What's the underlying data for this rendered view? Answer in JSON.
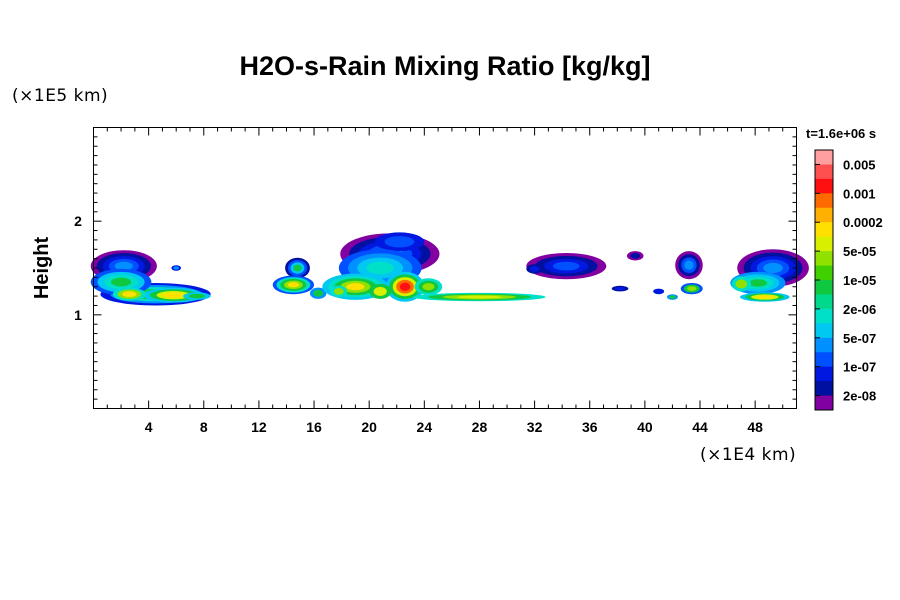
{
  "chart_data": {
    "type": "heatmap",
    "title": "H2O-s-Rain Mixing Ratio [kg/kg]",
    "ylabel": "Height",
    "xlabel": "",
    "x_unit": "(×1E4 km)",
    "y_unit": "(×1E5 km)",
    "time_label": "t=1.6e+06 s",
    "xlim": [
      0,
      51
    ],
    "ylim": [
      0,
      3
    ],
    "x_ticks": [
      4,
      8,
      12,
      16,
      20,
      24,
      28,
      32,
      36,
      40,
      44,
      48
    ],
    "y_ticks": [
      1,
      2
    ],
    "colorbar": {
      "labels": [
        "0.005",
        "0.001",
        "0.0002",
        "5e-05",
        "1e-05",
        "2e-06",
        "5e-07",
        "1e-07",
        "2e-08"
      ],
      "colors": [
        "#ff9f9f",
        "#ff5050",
        "#ff1010",
        "#ff6a00",
        "#ffb000",
        "#ffe000",
        "#d8f000",
        "#90e000",
        "#40d000",
        "#10c840",
        "#00d88c",
        "#00e0c8",
        "#00c8f0",
        "#0090ff",
        "#0050ff",
        "#0018e0",
        "#0010a0",
        "#8000a0"
      ]
    },
    "levels_order": [
      "purple",
      "navy",
      "blue",
      "mid-blue",
      "light-blue",
      "cyan",
      "teal",
      "green",
      "yellow-green",
      "yellow",
      "orange",
      "red"
    ],
    "regions": [
      {
        "x": [
          0,
          8.5
        ],
        "y": [
          1.1,
          1.7
        ],
        "peak": "yellow"
      },
      {
        "x": [
          5.5,
          6.5
        ],
        "y": [
          1.45,
          1.55
        ],
        "peak": "blue"
      },
      {
        "x": [
          12,
          17
        ],
        "y": [
          1.15,
          1.6
        ],
        "peak": "yellow"
      },
      {
        "x": [
          17,
          33
        ],
        "y": [
          1.1,
          1.9
        ],
        "peak": "red"
      },
      {
        "x": [
          31.5,
          37
        ],
        "y": [
          1.4,
          1.65
        ],
        "peak": "navy"
      },
      {
        "x": [
          37.5,
          39
        ],
        "y": [
          1.25,
          1.3
        ],
        "peak": "blue"
      },
      {
        "x": [
          38.5,
          40
        ],
        "y": [
          1.6,
          1.7
        ],
        "peak": "blue"
      },
      {
        "x": [
          40,
          44.5
        ],
        "y": [
          1.2,
          1.7
        ],
        "peak": "green"
      },
      {
        "x": [
          46,
          51
        ],
        "y": [
          1.1,
          1.75
        ],
        "peak": "yellow"
      }
    ]
  }
}
